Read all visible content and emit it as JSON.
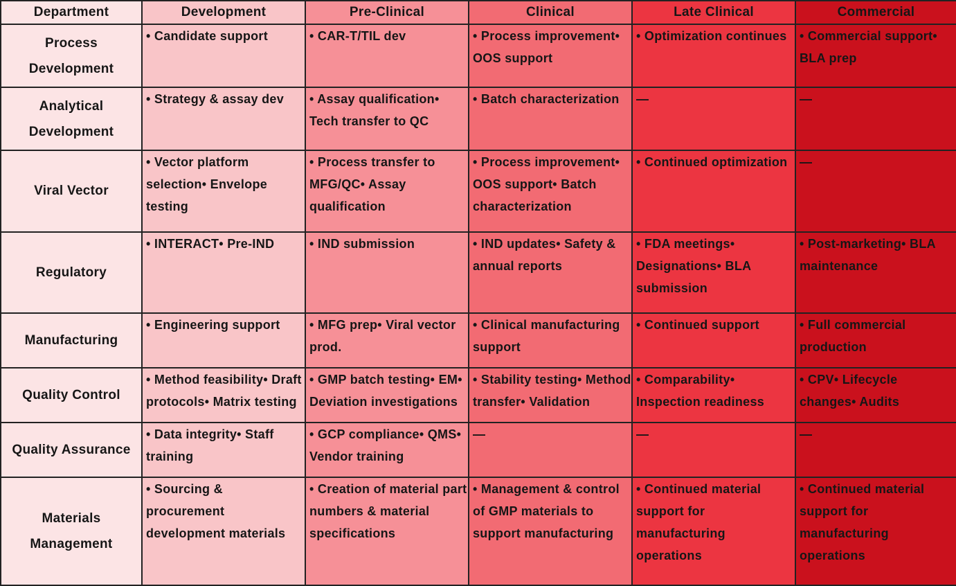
{
  "headers": [
    "Department",
    "Development",
    "Pre-Clinical",
    "Clinical",
    "Late Clinical",
    "Commercial"
  ],
  "rows": [
    {
      "department": "Process Development",
      "cells": [
        "• Candidate support",
        "• CAR-T/TIL dev",
        "• Process improvement• OOS support",
        "• Optimization continues",
        "• Commercial support• BLA prep"
      ]
    },
    {
      "department": "Analytical Development",
      "cells": [
        "• Strategy & assay dev",
        "• Assay qualification• Tech transfer to QC",
        "• Batch characterization",
        "—",
        "—"
      ]
    },
    {
      "department": "Viral Vector",
      "cells": [
        "• Vector platform selection• Envelope testing",
        "• Process transfer to MFG/QC• Assay qualification",
        "• Process improvement• OOS support• Batch characterization",
        "• Continued optimization",
        "—"
      ]
    },
    {
      "department": "Regulatory",
      "cells": [
        "• INTERACT• Pre-IND",
        "• IND submission",
        "• IND updates• Safety & annual reports",
        "• FDA meetings• Designations• BLA submission",
        "• Post-marketing• BLA maintenance"
      ]
    },
    {
      "department": "Manufacturing",
      "cells": [
        "• Engineering support",
        "• MFG prep• Viral vector prod.",
        "• Clinical manufacturing support",
        "• Continued support",
        "• Full commercial production"
      ]
    },
    {
      "department": "Quality Control",
      "cells": [
        "• Method feasibility• Draft protocols• Matrix testing",
        "• GMP batch testing• EM• Deviation investigations",
        "• Stability testing• Method transfer• Validation",
        "• Comparability• Inspection readiness",
        "• CPV• Lifecycle changes• Audits"
      ]
    },
    {
      "department": "Quality Assurance",
      "cells": [
        "• Data integrity• Staff training",
        "• GCP compliance• QMS• Vendor training",
        "—",
        "—",
        "—"
      ]
    },
    {
      "department": "Materials Management",
      "cells": [
        "• Sourcing & procurement development materials",
        "• Creation of material part numbers & material specifications",
        "• Management & control of GMP materials to support manufacturing",
        "• Continued material support for manufacturing operations",
        "• Continued material support for manufacturing operations"
      ]
    }
  ]
}
